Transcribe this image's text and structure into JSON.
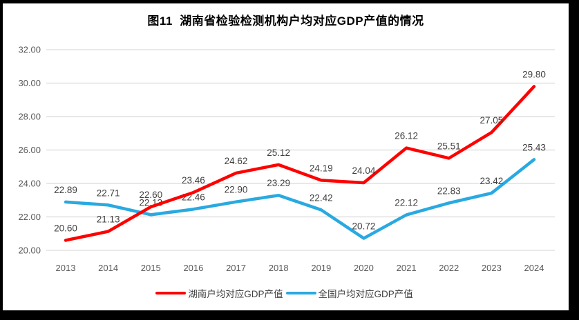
{
  "title": "图11  湖南省检验检测机构户均对应GDP产值的情况",
  "chart_data": {
    "type": "line",
    "categories": [
      "2013",
      "2014",
      "2015",
      "2016",
      "2017",
      "2018",
      "2019",
      "2020",
      "2021",
      "2022",
      "2023",
      "2024"
    ],
    "series": [
      {
        "name": "湖南户均对应GDP产值",
        "color": "#FF0000",
        "values": [
          20.6,
          21.13,
          22.6,
          23.46,
          24.62,
          25.12,
          24.19,
          24.04,
          26.12,
          25.51,
          27.05,
          29.8
        ]
      },
      {
        "name": "全国户均对应GDP产值",
        "color": "#29A9E1",
        "values": [
          22.89,
          22.71,
          22.13,
          22.46,
          22.9,
          23.29,
          22.42,
          20.72,
          22.12,
          22.83,
          23.42,
          25.43
        ]
      }
    ],
    "ylim": [
      20,
      32
    ],
    "y_tick_step": 2,
    "y_ticks": [
      "32.00",
      "30.00",
      "28.00",
      "26.00",
      "24.00",
      "22.00",
      "20.00"
    ],
    "xlabel": "",
    "ylabel": "",
    "grid": "horizontal-only",
    "legend_position": "bottom",
    "data_labels_visible": true,
    "value_format": "two-decimals"
  },
  "colors": {
    "frame": "#000000",
    "background": "#FFFFFF",
    "gridline": "#D9D9D9",
    "tick_text": "#595959",
    "data_label_text": "#3F3F3F",
    "title_text": "#000000"
  }
}
